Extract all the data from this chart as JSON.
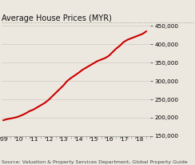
{
  "title": "Average House Prices (MYR)",
  "source": "Source: Valuation & Property Services Department, Global Property Guide",
  "x_values": [
    2009.0,
    2009.25,
    2009.5,
    2009.75,
    2010.0,
    2010.25,
    2010.5,
    2010.75,
    2011.0,
    2011.25,
    2011.5,
    2011.75,
    2012.0,
    2012.25,
    2012.5,
    2012.75,
    2013.0,
    2013.25,
    2013.5,
    2013.75,
    2014.0,
    2014.25,
    2014.5,
    2014.75,
    2015.0,
    2015.25,
    2015.5,
    2015.75,
    2016.0,
    2016.25,
    2016.5,
    2016.75,
    2017.0,
    2017.25,
    2017.5,
    2017.75,
    2018.0,
    2018.25,
    2018.5
  ],
  "y_values": [
    193000,
    196000,
    198000,
    200000,
    203000,
    207000,
    212000,
    218000,
    222000,
    228000,
    234000,
    240000,
    248000,
    258000,
    268000,
    278000,
    288000,
    300000,
    308000,
    315000,
    322000,
    330000,
    336000,
    342000,
    348000,
    354000,
    358000,
    362000,
    368000,
    378000,
    388000,
    396000,
    406000,
    412000,
    416000,
    420000,
    424000,
    428000,
    435000
  ],
  "line_color": "#cc0000",
  "line_width": 1.5,
  "xlim": [
    2008.92,
    2018.75
  ],
  "ylim": [
    150000,
    455000
  ],
  "yticks": [
    150000,
    200000,
    250000,
    300000,
    350000,
    400000,
    450000
  ],
  "xtick_labels": [
    "'09",
    "'10",
    "'11",
    "'12",
    "'13",
    "'14",
    "'15",
    "'16",
    "'17",
    "'18"
  ],
  "xtick_positions": [
    2009,
    2010,
    2011,
    2012,
    2013,
    2014,
    2015,
    2016,
    2017,
    2018
  ],
  "bg_color": "#ece8e0",
  "plot_bg_color": "#ece8e0",
  "grid_color": "#d4cfc8",
  "title_fontsize": 7.0,
  "source_fontsize": 4.5,
  "tick_fontsize": 5.2
}
